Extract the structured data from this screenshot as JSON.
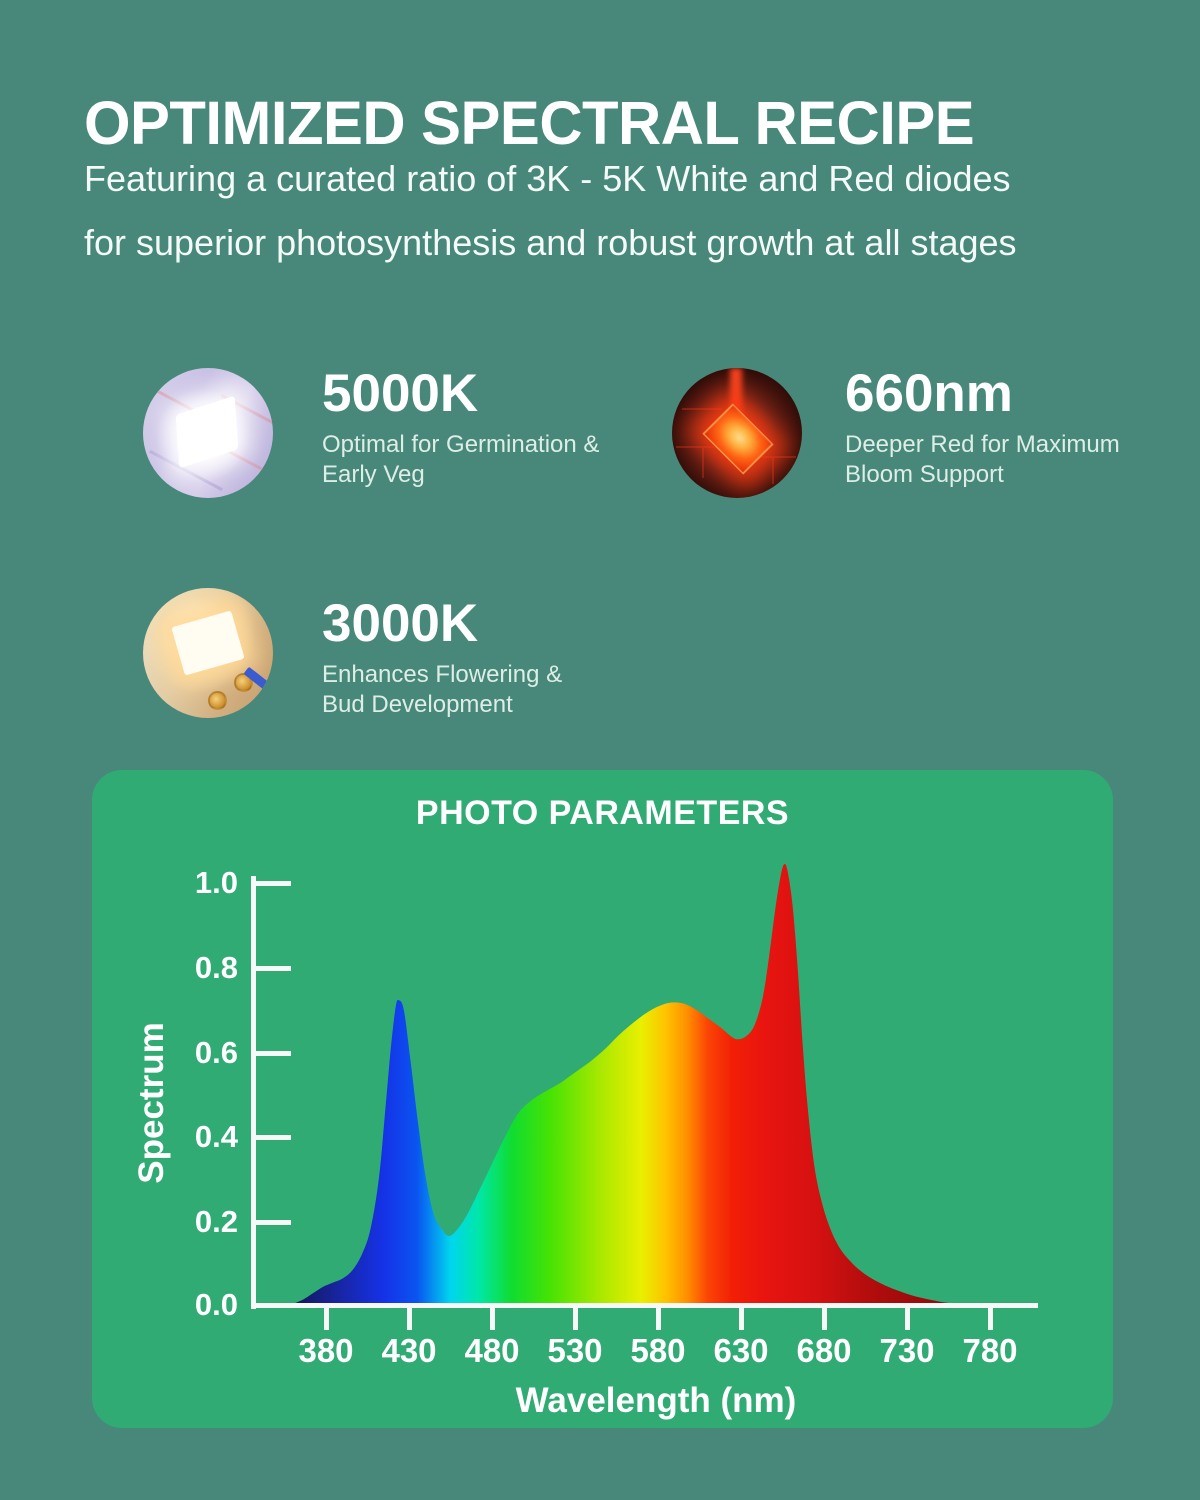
{
  "page": {
    "background": "#48887a",
    "panel_background": "#31ab74",
    "text_color": "#ffffff"
  },
  "header": {
    "title": "OPTIMIZED SPECTRAL RECIPE",
    "subtitle_line1": "Featuring a curated ratio of 3K - 5K White and Red diodes",
    "subtitle_line2": "for superior photosynthesis and robust growth at all stages"
  },
  "features": [
    {
      "value": "5000K",
      "description": "Optimal for Germination &\nEarly Veg",
      "photo": "cool-white-led-chip"
    },
    {
      "value": "660nm",
      "description": "Deeper Red for Maximum\nBloom Support",
      "photo": "red-660nm-led-chip"
    },
    {
      "value": "3000K",
      "description": "Enhances Flowering &\nBud Development",
      "photo": "warm-white-led-chip"
    }
  ],
  "panel": {
    "title": "PHOTO PARAMETERS"
  },
  "chart_data": {
    "type": "area",
    "title": "PHOTO PARAMETERS",
    "xlabel": "Wavelength (nm)",
    "ylabel": "Spectrum",
    "xlim": [
      360,
      790
    ],
    "ylim": [
      0,
      1.0
    ],
    "xticks": [
      380,
      430,
      480,
      530,
      580,
      630,
      680,
      730,
      780
    ],
    "yticks": [
      1.0,
      0.8,
      0.6,
      0.4,
      0.2,
      0.0
    ],
    "xtick_labels": [
      "380",
      "430",
      "480",
      "530",
      "580",
      "630",
      "680",
      "730",
      "780"
    ],
    "ytick_labels": [
      "1.0",
      "0.8",
      "0.6",
      "0.4",
      "0.2",
      "0.0"
    ],
    "grid": false,
    "legend": false,
    "annotations": "Filled LED spectral power distribution colored as a rainbow by wavelength; blue peak 0.71 @ ~422nm, valley 0.16 @ ~453nm, broad white-phosphor hump 0.71 @ ~588nm, dip 0.62 @ ~628nm, deep-red peak ~1.03 @ ~656nm, tail fading out by ~740nm",
    "series": [
      {
        "name": "LED spectrum",
        "points": [
          [
            360,
            0
          ],
          [
            366,
            0.01
          ],
          [
            372,
            0.025
          ],
          [
            378,
            0.04
          ],
          [
            384,
            0.05
          ],
          [
            390,
            0.06
          ],
          [
            396,
            0.08
          ],
          [
            402,
            0.12
          ],
          [
            407,
            0.18
          ],
          [
            412,
            0.3
          ],
          [
            416,
            0.47
          ],
          [
            419,
            0.6
          ],
          [
            422,
            0.7
          ],
          [
            424,
            0.715
          ],
          [
            427,
            0.69
          ],
          [
            431,
            0.57
          ],
          [
            435,
            0.44
          ],
          [
            440,
            0.3
          ],
          [
            445,
            0.21
          ],
          [
            450,
            0.175
          ],
          [
            454,
            0.16
          ],
          [
            459,
            0.175
          ],
          [
            465,
            0.21
          ],
          [
            472,
            0.265
          ],
          [
            480,
            0.33
          ],
          [
            488,
            0.395
          ],
          [
            496,
            0.45
          ],
          [
            504,
            0.48
          ],
          [
            512,
            0.5
          ],
          [
            521,
            0.52
          ],
          [
            530,
            0.545
          ],
          [
            539,
            0.57
          ],
          [
            548,
            0.6
          ],
          [
            557,
            0.635
          ],
          [
            566,
            0.665
          ],
          [
            575,
            0.69
          ],
          [
            583,
            0.705
          ],
          [
            590,
            0.71
          ],
          [
            597,
            0.705
          ],
          [
            604,
            0.69
          ],
          [
            611,
            0.67
          ],
          [
            618,
            0.65
          ],
          [
            624,
            0.63
          ],
          [
            628,
            0.623
          ],
          [
            633,
            0.63
          ],
          [
            638,
            0.655
          ],
          [
            643,
            0.72
          ],
          [
            647,
            0.82
          ],
          [
            651,
            0.94
          ],
          [
            654,
            1.01
          ],
          [
            656,
            1.035
          ],
          [
            658,
            1.02
          ],
          [
            661,
            0.94
          ],
          [
            664,
            0.8
          ],
          [
            667,
            0.62
          ],
          [
            670,
            0.47
          ],
          [
            674,
            0.33
          ],
          [
            678,
            0.25
          ],
          [
            683,
            0.185
          ],
          [
            689,
            0.135
          ],
          [
            696,
            0.1
          ],
          [
            703,
            0.075
          ],
          [
            711,
            0.055
          ],
          [
            719,
            0.04
          ],
          [
            727,
            0.028
          ],
          [
            735,
            0.018
          ],
          [
            744,
            0.01
          ],
          [
            752,
            0.004
          ],
          [
            760,
            0
          ]
        ]
      }
    ],
    "gradient_stops": [
      [
        365,
        "#131a63"
      ],
      [
        390,
        "#1826a8"
      ],
      [
        415,
        "#1532e8"
      ],
      [
        435,
        "#0a55f0"
      ],
      [
        455,
        "#00d5ef"
      ],
      [
        472,
        "#00e7a8"
      ],
      [
        492,
        "#10dc30"
      ],
      [
        515,
        "#46e303"
      ],
      [
        545,
        "#a9e800"
      ],
      [
        570,
        "#e9ef00"
      ],
      [
        585,
        "#ffc200"
      ],
      [
        598,
        "#ff8c00"
      ],
      [
        610,
        "#fb4405"
      ],
      [
        625,
        "#f21f06"
      ],
      [
        645,
        "#e81410"
      ],
      [
        675,
        "#d51111"
      ],
      [
        705,
        "#b50d0d"
      ],
      [
        735,
        "#9c0b0b"
      ]
    ]
  }
}
